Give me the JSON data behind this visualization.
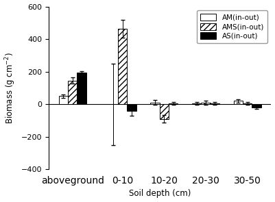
{
  "categories": [
    "aboveground",
    "0-10",
    "10-20",
    "20-30",
    "30-50"
  ],
  "AM": [
    50,
    0,
    10,
    5,
    20
  ],
  "AMS": [
    145,
    465,
    -90,
    10,
    5
  ],
  "AS": [
    195,
    -40,
    5,
    5,
    -20
  ],
  "AM_err": [
    10,
    250,
    15,
    8,
    10
  ],
  "AMS_err": [
    20,
    55,
    25,
    12,
    8
  ],
  "AS_err": [
    8,
    30,
    10,
    8,
    10
  ],
  "ylabel": "Biomass (g cm$^{-2}$)",
  "xlabel": "Soil depth (cm)",
  "ylim": [
    -400,
    600
  ],
  "yticks": [
    -400,
    -200,
    0,
    200,
    400,
    600
  ],
  "bar_width": 0.22,
  "legend_labels": [
    "AM(in-out)",
    "AMS(in-out)",
    "AS(in-out)"
  ],
  "hatch_AMS": "////",
  "x_positions": [
    0,
    1.2,
    2.2,
    3.2,
    4.2
  ]
}
